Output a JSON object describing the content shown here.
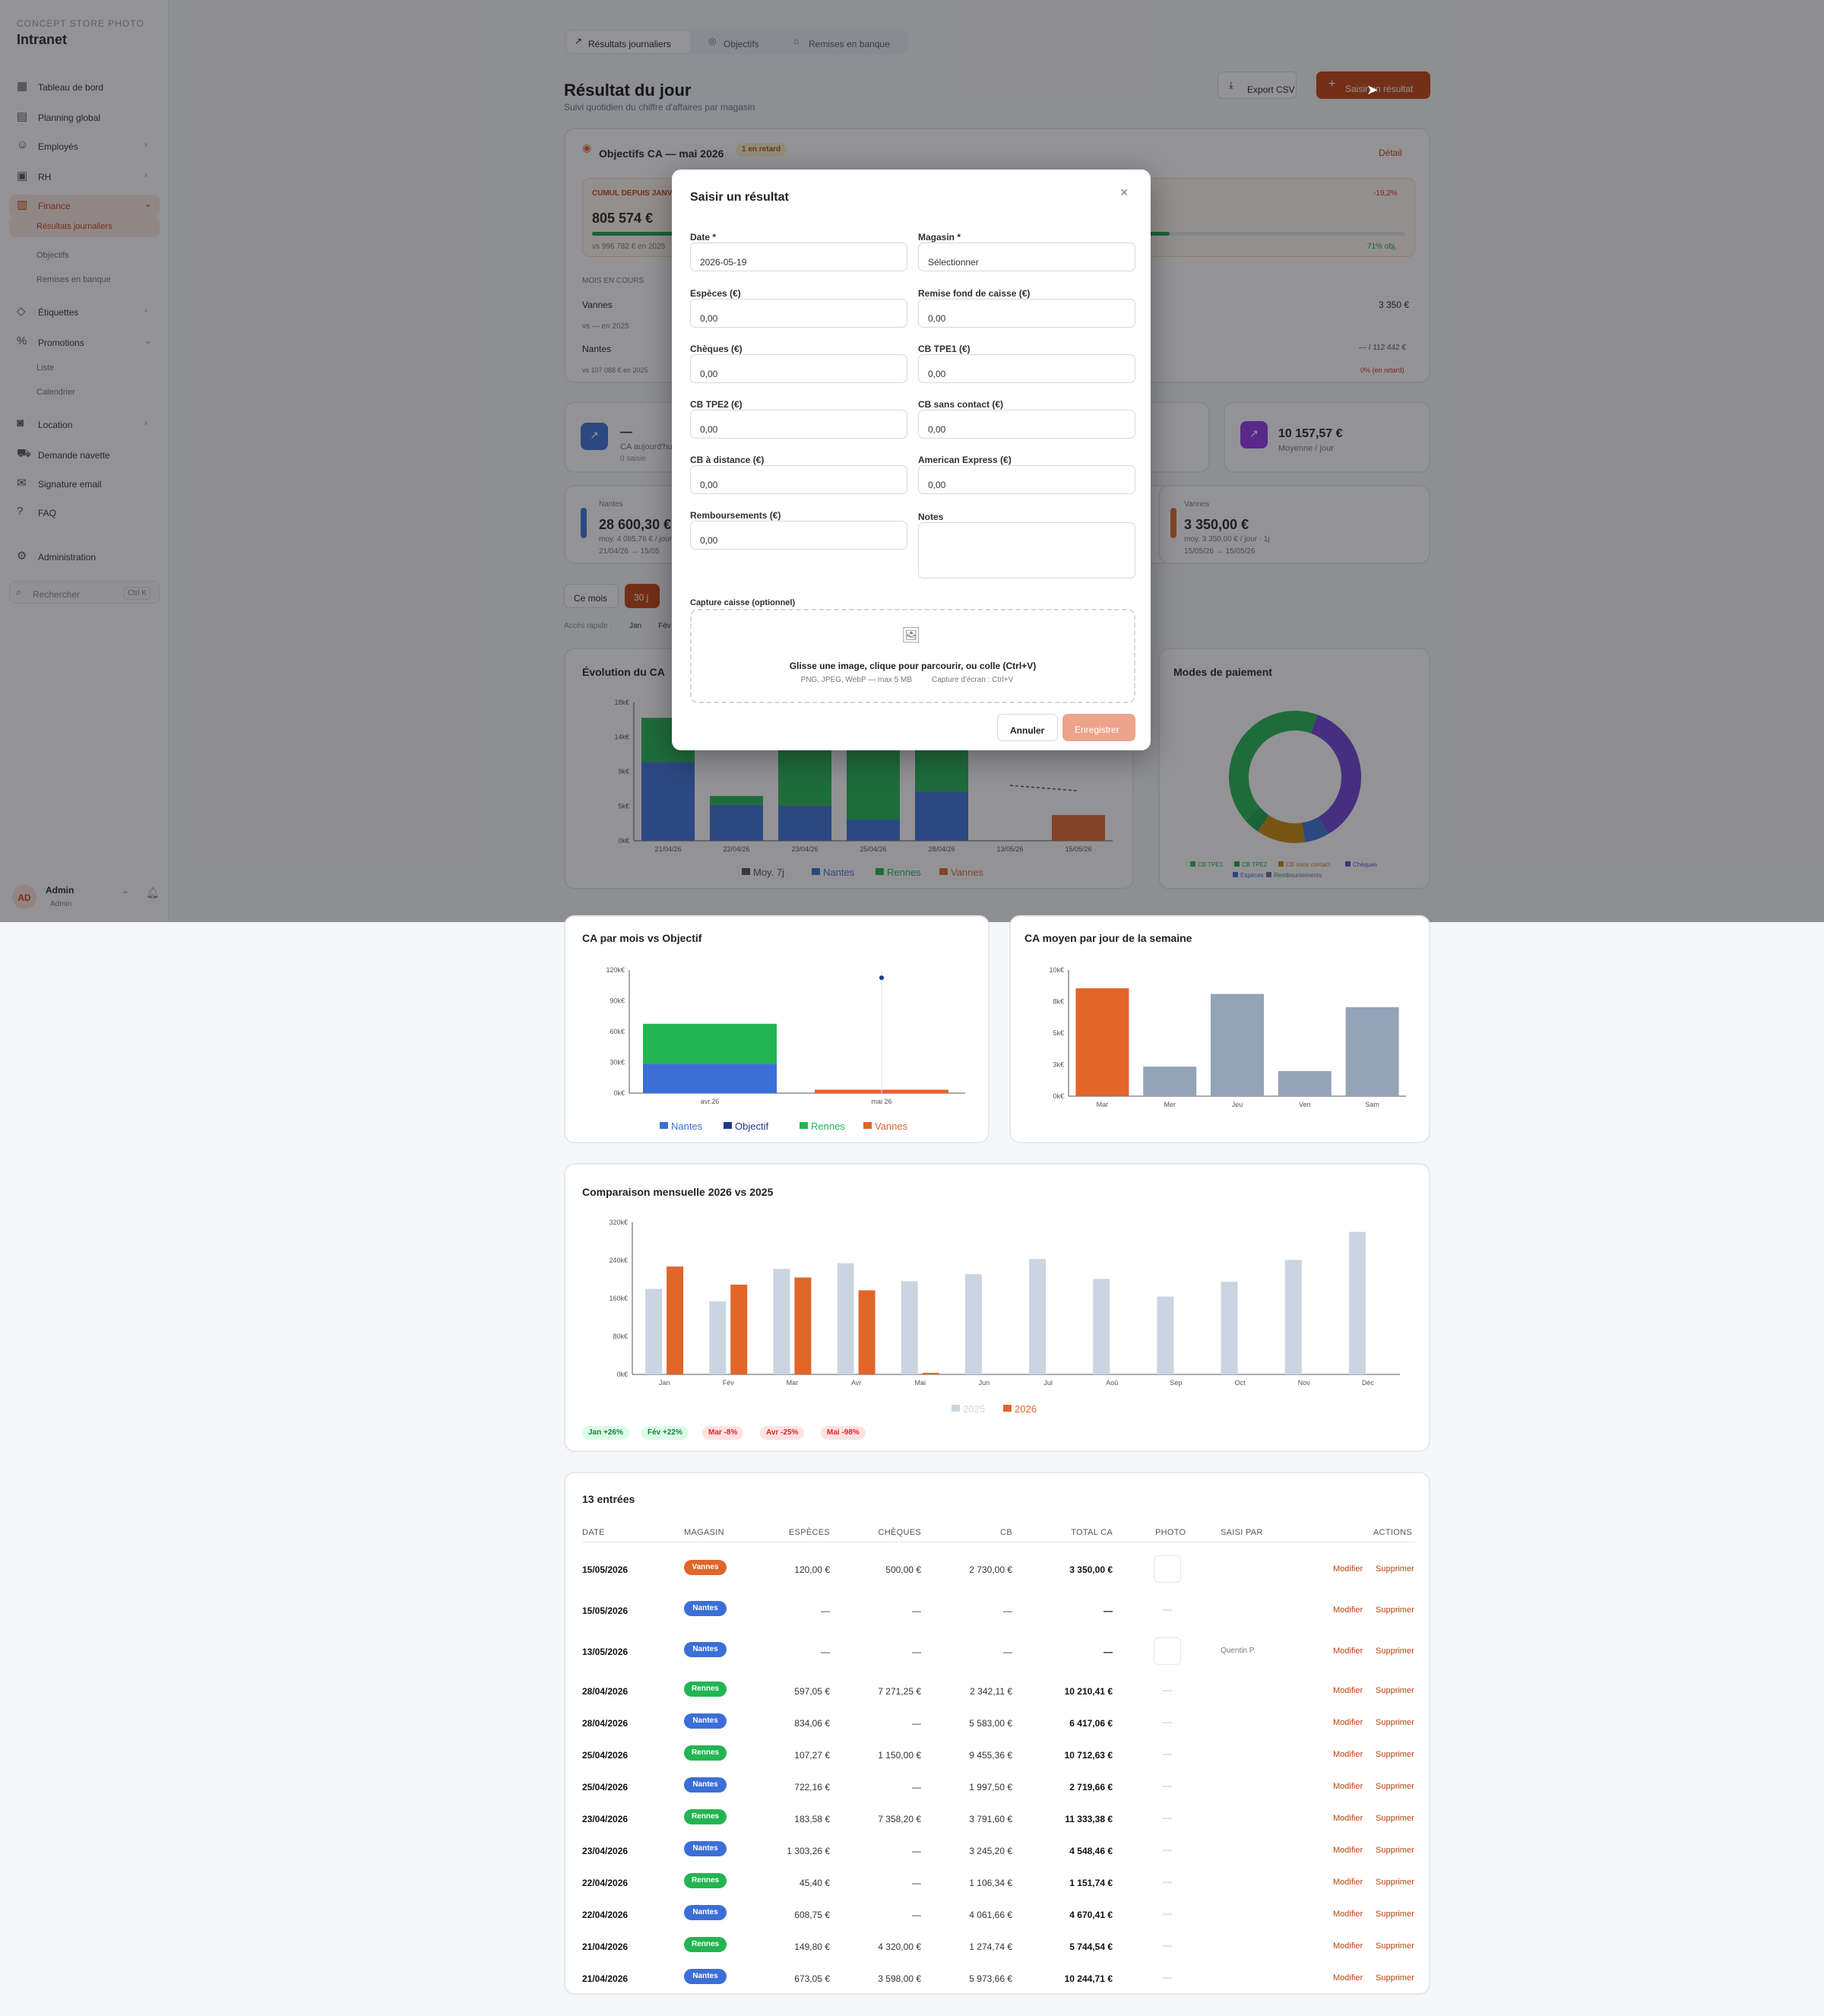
{
  "app": {
    "brand_small": "CONCEPT STORE PHOTO",
    "brand": "Intranet",
    "user_initials": "AD",
    "user_name": "Admin",
    "user_role": "Admin",
    "search_placeholder": "Rechercher",
    "search_shortcut": "Ctrl K"
  },
  "sidebar": {
    "items": [
      {
        "label": "Tableau de bord",
        "icon": "grid-icon"
      },
      {
        "label": "Planning global",
        "icon": "calendar-icon"
      },
      {
        "label": "Employés",
        "icon": "users-icon"
      },
      {
        "label": "RH",
        "icon": "briefcase-icon"
      },
      {
        "label": "Finance",
        "icon": "bar-chart-icon"
      },
      {
        "label": "Étiquettes",
        "icon": "tag-icon"
      },
      {
        "label": "Promotions",
        "icon": "percent-icon"
      },
      {
        "label": "Location",
        "icon": "camera-icon"
      },
      {
        "label": "Demande navette",
        "icon": "truck-icon"
      },
      {
        "label": "Signature email",
        "icon": "mail-icon"
      },
      {
        "label": "FAQ",
        "icon": "help-icon"
      },
      {
        "label": "Administration",
        "icon": "gear-icon"
      }
    ],
    "finance_sub": [
      "Résultats journaliers",
      "Objectifs",
      "Remises en banque"
    ],
    "promo_sub": [
      "Liste",
      "Calendrier"
    ]
  },
  "tabs": [
    "Résultats journaliers",
    "Objectifs",
    "Remises en banque"
  ],
  "header": {
    "title": "Résultat du jour",
    "subtitle": "Suivi quotidien du chiffre d'affaires par magasin",
    "export": "Export CSV",
    "add": "Saisir un résultat"
  },
  "objectives": {
    "title": "Objectifs CA — mai 2026",
    "badge": "1 en retard",
    "detail": "Détail",
    "cumul_label": "CUMUL DEPUIS JANVIER",
    "cumul_value": "805 574 €",
    "cumul_vs": "vs 996 782 € en 2025",
    "pct_neg": "-19,2%",
    "obj_pct": "71% obj.",
    "month_label": "MOIS EN COURS",
    "rows": [
      {
        "store": "Vannes",
        "value": "3 350 €",
        "vs": "vs — en 2025"
      },
      {
        "store": "Nantes",
        "value": "— / 112 442 €",
        "vs": "vs 107 088 € en 2025",
        "pct": "0% (en retard)"
      }
    ]
  },
  "kpis": [
    {
      "value": "—",
      "label": "CA aujourd'hui",
      "sub": "0 saisie"
    },
    {
      "value": "10 157,57 €",
      "label": "Moyenne / jour"
    }
  ],
  "stores": [
    {
      "name": "Nantes",
      "value": "28 600,30 €",
      "sub": "moy. 4 085,76 € / jour",
      "range": "21/04/26 → 15/05"
    },
    {
      "name": "Vannes",
      "value": "3 350,00 €",
      "sub": "moy. 3 350,00 € / jour · 1j",
      "range": "15/05/26 → 15/05/26"
    }
  ],
  "filters": {
    "month": "Ce mois",
    "days30": "30 j",
    "quick": "Accès rapide :",
    "m1": "Jan",
    "m2": "Fév"
  },
  "modal": {
    "title": "Saisir un résultat",
    "date_label": "Date *",
    "date_value": "2026-05-19",
    "store_label": "Magasin *",
    "store_value": "Sélectionner",
    "fields": [
      {
        "label": "Espèces (€)",
        "value": "0,00"
      },
      {
        "label": "Remise fond de caisse (€)",
        "value": "0,00"
      },
      {
        "label": "Chèques (€)",
        "value": "0,00"
      },
      {
        "label": "CB TPE1 (€)",
        "value": "0,00"
      },
      {
        "label": "CB TPE2 (€)",
        "value": "0,00"
      },
      {
        "label": "CB sans contact (€)",
        "value": "0,00"
      },
      {
        "label": "CB à distance (€)",
        "value": "0,00"
      },
      {
        "label": "American Express (€)",
        "value": "0,00"
      },
      {
        "label": "Remboursements (€)",
        "value": "0,00"
      }
    ],
    "notes_label": "Notes",
    "capture_label": "Capture caisse (optionnel)",
    "drop_text": "Glisse une image, clique pour parcourir, ou colle (Ctrl+V)",
    "drop_hint": "PNG, JPEG, WebP — max 5 MB",
    "drop_hint2": "Capture d'écran : Ctrl+V",
    "cancel": "Annuler",
    "save": "Enregistrer"
  },
  "evolution": {
    "title": "Évolution du CA",
    "legend": [
      "Moy. 7j",
      "Nantes",
      "Rennes",
      "Vannes"
    ]
  },
  "payment": {
    "title": "Modes de paiement",
    "legend": [
      "CB TPE1",
      "CB TPE2",
      "CB sans contact",
      "Chèques",
      "Espèces",
      "Remboursements"
    ]
  },
  "monthly": {
    "title": "CA par mois vs Objectif",
    "legend": [
      "Nantes",
      "Objectif",
      "Rennes",
      "Vannes"
    ]
  },
  "weekday": {
    "title": "CA moyen par jour de la semaine"
  },
  "compare": {
    "title": "Comparaison mensuelle 2026 vs 2025",
    "legend": [
      "2025",
      "2026"
    ],
    "tags": [
      "Jan +26%",
      "Fév +22%",
      "Mar -8%",
      "Avr -25%",
      "Mai -98%"
    ]
  },
  "chart_data": [
    {
      "type": "bar",
      "title": "Évolution du CA",
      "categories": [
        "21/04/26",
        "22/04/26",
        "23/04/26",
        "25/04/26",
        "28/04/26",
        "13/05/26",
        "15/05/26"
      ],
      "series": [
        {
          "name": "Nantes",
          "values": [
            10245,
            4670,
            4548,
            2720,
            6417,
            0,
            0
          ]
        },
        {
          "name": "Rennes",
          "values": [
            5744,
            1152,
            11333,
            10713,
            10210,
            0,
            0
          ]
        },
        {
          "name": "Vannes",
          "values": [
            0,
            0,
            0,
            0,
            0,
            0,
            3350
          ]
        },
        {
          "name": "Moy. 7j",
          "values": [
            null,
            null,
            null,
            null,
            null,
            7200,
            6500
          ]
        }
      ],
      "yticks": [
        "0k€",
        "5k€",
        "9k€",
        "14k€",
        "18k€"
      ],
      "ylim": [
        0,
        18000
      ]
    },
    {
      "type": "pie",
      "title": "Modes de paiement",
      "labels": [
        "CB TPE1",
        "CB TPE2",
        "CB sans contact",
        "Chèques",
        "Espèces",
        "Remboursements"
      ],
      "values": [
        42,
        0,
        12,
        6,
        4,
        36
      ]
    },
    {
      "type": "bar",
      "title": "CA par mois vs Objectif",
      "categories": [
        "avr.26",
        "mai 26"
      ],
      "series": [
        {
          "name": "Nantes",
          "values": [
            28600,
            0
          ]
        },
        {
          "name": "Rennes",
          "values": [
            39000,
            0
          ]
        },
        {
          "name": "Vannes",
          "values": [
            0,
            3350
          ]
        },
        {
          "name": "Objectif",
          "values": [
            null,
            112442
          ]
        }
      ],
      "yticks": [
        "0k€",
        "30k€",
        "60k€",
        "90k€",
        "120k€"
      ],
      "ylim": [
        0,
        120000
      ]
    },
    {
      "type": "bar",
      "title": "CA moyen par jour de la semaine",
      "categories": [
        "Mar",
        "Mer",
        "Jeu",
        "Ven",
        "Sam"
      ],
      "values": [
        8550,
        2340,
        8100,
        1990,
        7050
      ],
      "yticks": [
        "0k€",
        "3k€",
        "5k€",
        "8k€",
        "10k€"
      ],
      "ylim": [
        0,
        10000
      ]
    },
    {
      "type": "bar",
      "title": "Comparaison mensuelle 2026 vs 2025",
      "categories": [
        "Jan",
        "Fév",
        "Mar",
        "Avr",
        "Mai",
        "Jun",
        "Jul",
        "Aoû",
        "Sep",
        "Oct",
        "Nov",
        "Déc"
      ],
      "series": [
        {
          "name": "2025",
          "values": [
            180000,
            154000,
            222000,
            234000,
            196000,
            211000,
            243000,
            201000,
            164000,
            195000,
            241000,
            300000
          ]
        },
        {
          "name": "2026",
          "values": [
            227000,
            189000,
            204000,
            177000,
            3350,
            null,
            null,
            null,
            null,
            null,
            null,
            null
          ]
        }
      ],
      "yticks": [
        "0k€",
        "80k€",
        "160k€",
        "240k€",
        "320k€"
      ],
      "ylim": [
        0,
        320000
      ]
    }
  ],
  "table": {
    "count": "13 entrées",
    "headers": [
      "DATE",
      "MAGASIN",
      "ESPÈCES",
      "CHÈQUES",
      "CB",
      "TOTAL CA",
      "PHOTO",
      "SAISI PAR",
      "ACTIONS"
    ],
    "modify": "Modifier",
    "delete": "Supprimer",
    "rows": [
      {
        "date": "15/05/2026",
        "store": "Vannes",
        "cash": "120,00 €",
        "cheque": "500,00 €",
        "cb": "2 730,00 €",
        "total": "3 350,00 €",
        "by": "",
        "photo": true
      },
      {
        "date": "15/05/2026",
        "store": "Nantes",
        "cash": "—",
        "cheque": "—",
        "cb": "—",
        "total": "—",
        "by": "",
        "photo": false
      },
      {
        "date": "13/05/2026",
        "store": "Nantes",
        "cash": "—",
        "cheque": "—",
        "cb": "—",
        "total": "—",
        "by": "Quentin P.",
        "photo": true
      },
      {
        "date": "28/04/2026",
        "store": "Rennes",
        "cash": "597,05 €",
        "cheque": "7 271,25 €",
        "cb": "2 342,11 €",
        "total": "10 210,41 €",
        "by": "",
        "photo": false
      },
      {
        "date": "28/04/2026",
        "store": "Nantes",
        "cash": "834,06 €",
        "cheque": "—",
        "cb": "5 583,00 €",
        "total": "6 417,06 €",
        "by": "",
        "photo": false
      },
      {
        "date": "25/04/2026",
        "store": "Rennes",
        "cash": "107,27 €",
        "cheque": "1 150,00 €",
        "cb": "9 455,36 €",
        "total": "10 712,63 €",
        "by": "",
        "photo": false
      },
      {
        "date": "25/04/2026",
        "store": "Nantes",
        "cash": "722,16 €",
        "cheque": "—",
        "cb": "1 997,50 €",
        "total": "2 719,66 €",
        "by": "",
        "photo": false
      },
      {
        "date": "23/04/2026",
        "store": "Rennes",
        "cash": "183,58 €",
        "cheque": "7 358,20 €",
        "cb": "3 791,60 €",
        "total": "11 333,38 €",
        "by": "",
        "photo": false
      },
      {
        "date": "23/04/2026",
        "store": "Nantes",
        "cash": "1 303,26 €",
        "cheque": "—",
        "cb": "3 245,20 €",
        "total": "4 548,46 €",
        "by": "",
        "photo": false
      },
      {
        "date": "22/04/2026",
        "store": "Rennes",
        "cash": "45,40 €",
        "cheque": "—",
        "cb": "1 106,34 €",
        "total": "1 151,74 €",
        "by": "",
        "photo": false
      },
      {
        "date": "22/04/2026",
        "store": "Nantes",
        "cash": "608,75 €",
        "cheque": "—",
        "cb": "4 061,66 €",
        "total": "4 670,41 €",
        "by": "",
        "photo": false
      },
      {
        "date": "21/04/2026",
        "store": "Rennes",
        "cash": "149,80 €",
        "cheque": "4 320,00 €",
        "cb": "1 274,74 €",
        "total": "5 744,54 €",
        "by": "",
        "photo": false
      },
      {
        "date": "21/04/2026",
        "store": "Nantes",
        "cash": "673,05 €",
        "cheque": "3 598,00 €",
        "cb": "5 973,66 €",
        "total": "10 244,71 €",
        "by": "",
        "photo": false
      }
    ]
  },
  "colors": {
    "nantes": "#3b6fd6",
    "rennes": "#22b552",
    "vannes": "#e0662a",
    "accent": "#c2410c",
    "obj": "#1e3a8a",
    "gray": "#94a3b8",
    "light": "#cbd5e1"
  }
}
